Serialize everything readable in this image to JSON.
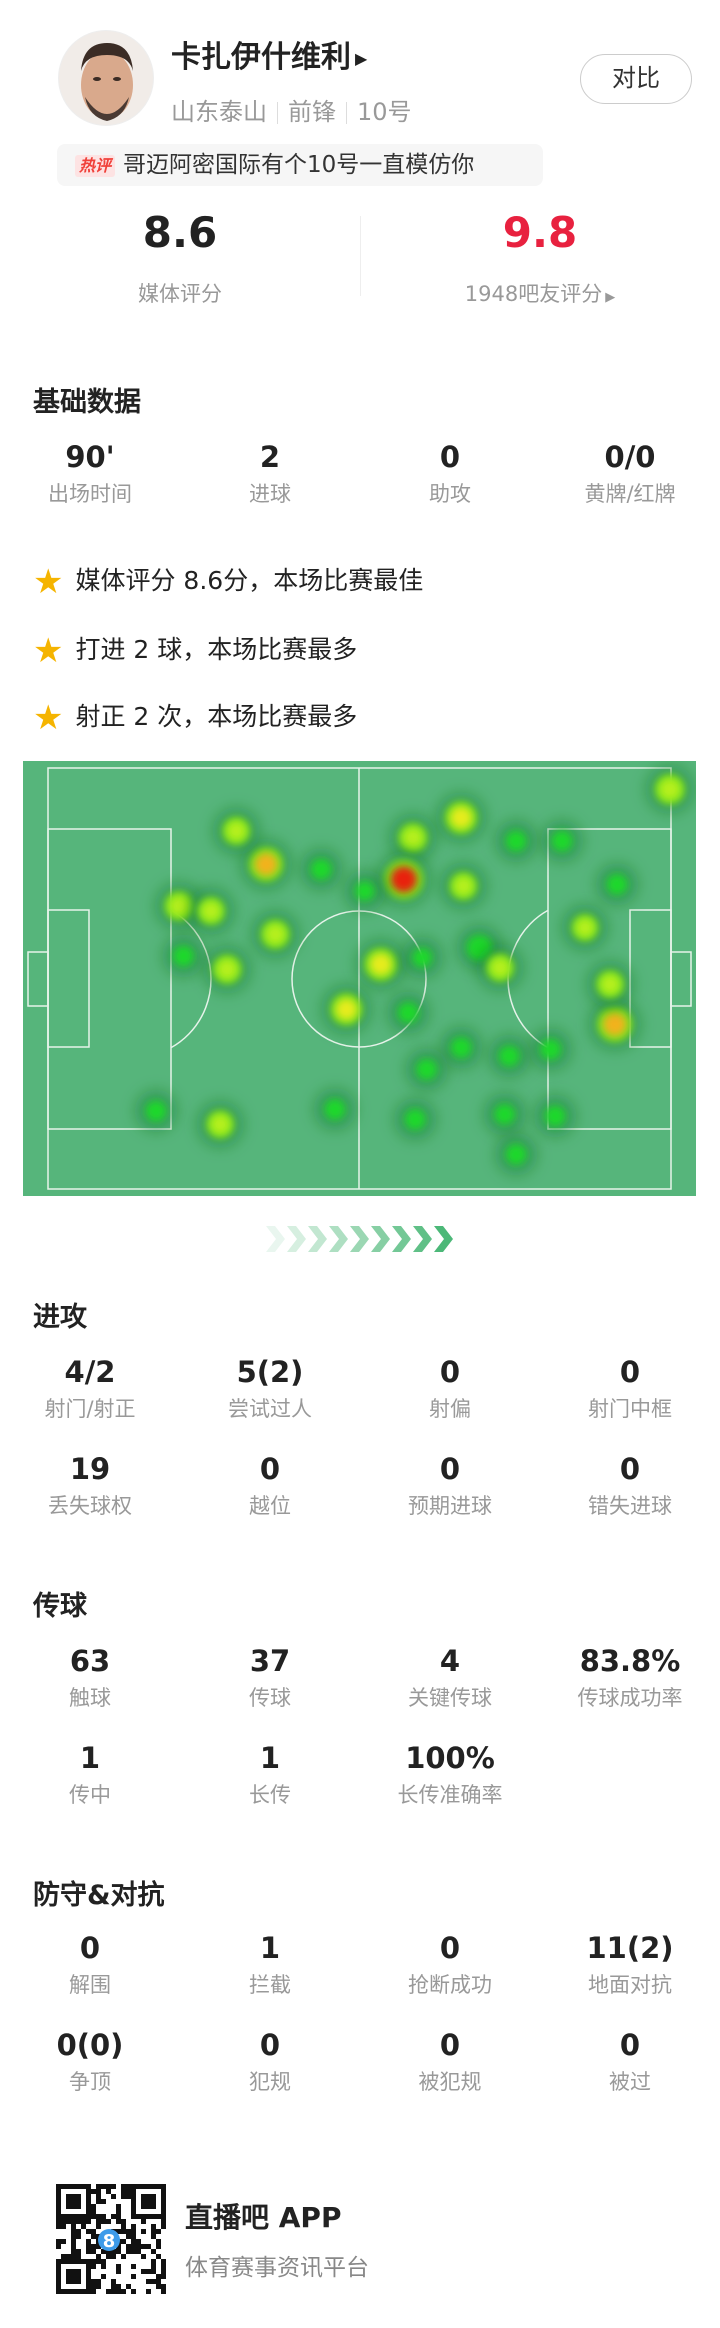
{
  "player": {
    "name": "卡扎伊什维利",
    "team": "山东泰山",
    "position": "前锋",
    "number": "10号",
    "compare_label": "对比"
  },
  "hot_comment": {
    "tag": "热评",
    "text": "哥迈阿密国际有个10号一直模仿你"
  },
  "ratings": {
    "media_value": "8.6",
    "media_label": "媒体评分",
    "fan_value": "9.8",
    "fan_label": "1948吧友评分",
    "fan_color": "#e8213f"
  },
  "basic": {
    "title": "基础数据",
    "stats": [
      {
        "value": "90'",
        "label": "出场时间"
      },
      {
        "value": "2",
        "label": "进球"
      },
      {
        "value": "0",
        "label": "助攻"
      },
      {
        "value": "0/0",
        "label": "黄牌/红牌"
      }
    ]
  },
  "highlights": [
    "媒体评分 8.6分，本场比赛最佳",
    "打进 2 球，本场比赛最多",
    "射正 2 次，本场比赛最多"
  ],
  "attack": {
    "title": "进攻",
    "stats": [
      {
        "value": "4/2",
        "label": "射门/射正"
      },
      {
        "value": "5(2)",
        "label": "尝试过人"
      },
      {
        "value": "0",
        "label": "射偏"
      },
      {
        "value": "0",
        "label": "射门中框"
      },
      {
        "value": "19",
        "label": "丢失球权"
      },
      {
        "value": "0",
        "label": "越位"
      },
      {
        "value": "0",
        "label": "预期进球"
      },
      {
        "value": "0",
        "label": "错失进球"
      }
    ]
  },
  "passing": {
    "title": "传球",
    "stats": [
      {
        "value": "63",
        "label": "触球"
      },
      {
        "value": "37",
        "label": "传球"
      },
      {
        "value": "4",
        "label": "关键传球"
      },
      {
        "value": "83.8%",
        "label": "传球成功率"
      },
      {
        "value": "1",
        "label": "传中"
      },
      {
        "value": "1",
        "label": "长传"
      },
      {
        "value": "100%",
        "label": "长传准确率"
      }
    ]
  },
  "defense": {
    "title": "防守&对抗",
    "stats": [
      {
        "value": "0",
        "label": "解围"
      },
      {
        "value": "1",
        "label": "拦截"
      },
      {
        "value": "0",
        "label": "抢断成功"
      },
      {
        "value": "11(2)",
        "label": "地面对抗"
      },
      {
        "value": "0(0)",
        "label": "争顶"
      },
      {
        "value": "0",
        "label": "犯规"
      },
      {
        "value": "0",
        "label": "被犯规"
      },
      {
        "value": "0",
        "label": "被过"
      }
    ]
  },
  "footer": {
    "app_name": "直播吧 APP",
    "slogan": "体育赛事资讯平台",
    "qr_badge": "8"
  },
  "colors": {
    "pitch": "#56b57b",
    "star": "#f5b400",
    "accent_red": "#e8213f"
  }
}
